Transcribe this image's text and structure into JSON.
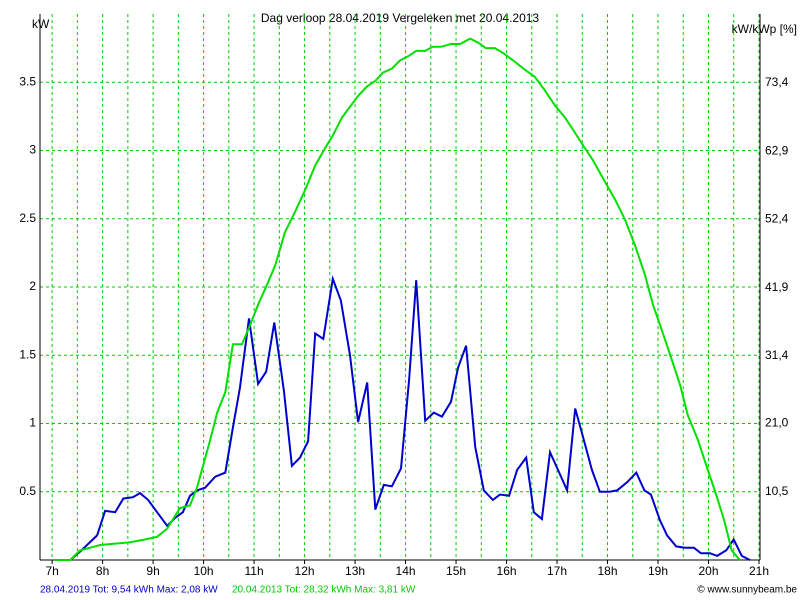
{
  "chart_data": {
    "type": "line",
    "title": "Dag  verloop 28.04.2019   Vergeleken met 20.04.2013",
    "y_label": "kW",
    "y2_label": "kW/kWp [%]",
    "footer_left": "28.04.2019 Tot: 9,54 kWh Max: 2,08 kW",
    "footer_mid": "20.04.2013 Tot: 28,32 kWh Max: 3,81 kW",
    "footer_right": "© www.sunnybeam.be",
    "xlim": [
      6.76,
      21.02
    ],
    "xticks": [
      {
        "value": 7,
        "label": "7h"
      },
      {
        "value": 8,
        "label": "8h"
      },
      {
        "value": 9,
        "label": "9h"
      },
      {
        "value": 10,
        "label": "10h"
      },
      {
        "value": 11,
        "label": "11h"
      },
      {
        "value": 12,
        "label": "12h"
      },
      {
        "value": 13,
        "label": "13h"
      },
      {
        "value": 14,
        "label": "14h"
      },
      {
        "value": 15,
        "label": "15h"
      },
      {
        "value": 16,
        "label": "16h"
      },
      {
        "value": 17,
        "label": "17h"
      },
      {
        "value": 18,
        "label": "18h"
      },
      {
        "value": 19,
        "label": "19h"
      },
      {
        "value": 20,
        "label": "20h"
      },
      {
        "value": 21,
        "label": "21h"
      }
    ],
    "xminorticks": [
      7.5,
      8.5,
      9.5,
      10.5,
      11.5,
      12.5,
      13.5,
      14.5,
      15.5,
      16.5,
      17.5,
      18.5,
      19.5,
      20.5
    ],
    "ylim": [
      0,
      4
    ],
    "yticks": [
      0.5,
      1,
      1.5,
      2,
      2.5,
      3,
      3.5
    ],
    "y2lim": [
      0,
      84
    ],
    "y2ticks": [
      {
        "value": 10.5,
        "label": "10,5"
      },
      {
        "value": 21.0,
        "label": "21,0"
      },
      {
        "value": 31.4,
        "label": "31,4"
      },
      {
        "value": 41.9,
        "label": "41,9"
      },
      {
        "value": 52.4,
        "label": "52,4"
      },
      {
        "value": 62.9,
        "label": "62,9"
      },
      {
        "value": 73.4,
        "label": "73,4"
      }
    ],
    "grid": true,
    "grid_color": "#00cc00",
    "series": [
      {
        "name": "28.04.2019",
        "color": "#0000cc",
        "x": [
          7.36,
          7.55,
          7.89,
          8.05,
          8.25,
          8.41,
          8.6,
          8.74,
          8.9,
          9.08,
          9.28,
          9.44,
          9.59,
          9.73,
          9.87,
          10.03,
          10.23,
          10.43,
          10.58,
          10.72,
          10.9,
          11.08,
          11.24,
          11.4,
          11.59,
          11.75,
          11.91,
          12.07,
          12.21,
          12.37,
          12.56,
          12.72,
          12.9,
          13.06,
          13.24,
          13.4,
          13.57,
          13.73,
          13.91,
          14.07,
          14.21,
          14.39,
          14.56,
          14.72,
          14.9,
          15.04,
          15.2,
          15.38,
          15.55,
          15.73,
          15.87,
          16.05,
          16.21,
          16.39,
          16.54,
          16.7,
          16.86,
          17.02,
          17.2,
          17.36,
          17.53,
          17.69,
          17.85,
          18.03,
          18.19,
          18.39,
          18.57,
          18.73,
          18.86,
          19.04,
          19.18,
          19.36,
          19.53,
          19.71,
          19.85,
          20.03,
          20.17,
          20.35,
          20.5,
          20.66,
          20.82
        ],
        "values": [
          0,
          0.06,
          0.18,
          0.36,
          0.35,
          0.45,
          0.46,
          0.49,
          0.44,
          0.35,
          0.25,
          0.31,
          0.35,
          0.47,
          0.51,
          0.53,
          0.61,
          0.64,
          0.97,
          1.26,
          1.77,
          1.29,
          1.38,
          1.74,
          1.24,
          0.69,
          0.75,
          0.87,
          1.66,
          1.62,
          2.06,
          1.9,
          1.5,
          1.01,
          1.3,
          0.37,
          0.55,
          0.54,
          0.67,
          1.32,
          2.05,
          1.02,
          1.08,
          1.05,
          1.16,
          1.41,
          1.57,
          0.83,
          0.51,
          0.44,
          0.48,
          0.47,
          0.66,
          0.75,
          0.35,
          0.3,
          0.79,
          0.66,
          0.51,
          1.11,
          0.88,
          0.66,
          0.5,
          0.5,
          0.51,
          0.57,
          0.64,
          0.51,
          0.48,
          0.29,
          0.18,
          0.1,
          0.09,
          0.09,
          0.05,
          0.05,
          0.03,
          0.07,
          0.15,
          0.03,
          0
        ]
      },
      {
        "name": "20.04.2013",
        "color": "#00e000",
        "x": [
          7.06,
          7.36,
          7.55,
          7.95,
          8.25,
          8.54,
          8.84,
          9.08,
          9.28,
          9.53,
          9.73,
          9.87,
          10.13,
          10.27,
          10.43,
          10.58,
          10.76,
          10.92,
          11.08,
          11.26,
          11.42,
          11.61,
          11.81,
          12.01,
          12.21,
          12.41,
          12.56,
          12.74,
          12.9,
          13.06,
          13.24,
          13.4,
          13.55,
          13.73,
          13.89,
          14.05,
          14.21,
          14.39,
          14.54,
          14.7,
          14.9,
          15.08,
          15.28,
          15.44,
          15.59,
          15.77,
          15.95,
          16.13,
          16.37,
          16.56,
          16.76,
          16.96,
          17.16,
          17.32,
          17.51,
          17.71,
          17.95,
          18.15,
          18.35,
          18.54,
          18.74,
          18.9,
          19.08,
          19.28,
          19.44,
          19.59,
          19.79,
          19.95,
          20.15,
          20.31,
          20.46,
          20.62
        ],
        "values": [
          0,
          0,
          0.07,
          0.11,
          0.12,
          0.13,
          0.15,
          0.17,
          0.23,
          0.38,
          0.4,
          0.53,
          0.88,
          1.08,
          1.23,
          1.58,
          1.58,
          1.72,
          1.87,
          2.02,
          2.16,
          2.4,
          2.55,
          2.71,
          2.89,
          3.02,
          3.11,
          3.24,
          3.32,
          3.4,
          3.47,
          3.51,
          3.57,
          3.6,
          3.66,
          3.69,
          3.73,
          3.73,
          3.76,
          3.76,
          3.78,
          3.78,
          3.82,
          3.79,
          3.75,
          3.75,
          3.71,
          3.66,
          3.59,
          3.54,
          3.44,
          3.33,
          3.24,
          3.15,
          3.04,
          2.93,
          2.77,
          2.64,
          2.49,
          2.31,
          2.09,
          1.87,
          1.68,
          1.46,
          1.28,
          1.06,
          0.88,
          0.7,
          0.48,
          0.29,
          0.07,
          0
        ]
      }
    ]
  }
}
